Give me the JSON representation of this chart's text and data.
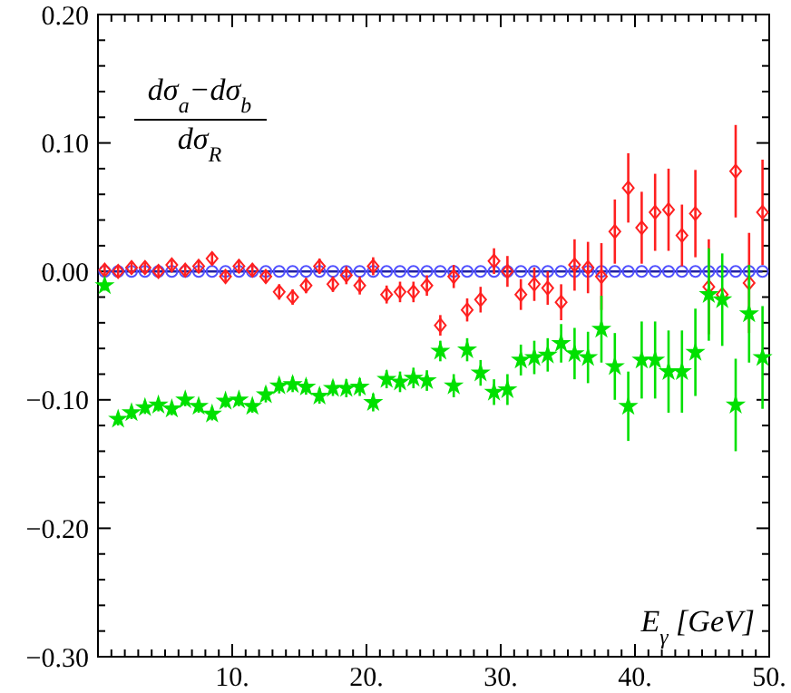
{
  "chart_data": {
    "type": "scatter",
    "annotations": [
      "dσ$_{a}$−dσ$_{b}$",
      "dσ$_{R}$"
    ],
    "xlabel": "E$_{γ}$ [GeV]",
    "x": [
      0.5,
      1.5,
      2.5,
      3.5,
      4.5,
      5.5,
      6.5,
      7.5,
      8.5,
      9.5,
      10.5,
      11.5,
      12.5,
      13.5,
      14.5,
      15.5,
      16.5,
      17.5,
      18.5,
      19.5,
      20.5,
      21.5,
      22.5,
      23.5,
      24.5,
      25.5,
      26.5,
      27.5,
      28.5,
      29.5,
      30.5,
      31.5,
      32.5,
      33.5,
      34.5,
      35.5,
      36.5,
      37.5,
      38.5,
      39.5,
      40.5,
      41.5,
      42.5,
      43.5,
      44.5,
      45.5,
      46.5,
      47.5,
      48.5,
      49.5
    ],
    "series": [
      {
        "type": "line",
        "color": "#5050ff",
        "marker": "circle",
        "line_style": "solid",
        "values": [
          0,
          0,
          0,
          0,
          0,
          0,
          0,
          0,
          0,
          0,
          0,
          0,
          0,
          0,
          0,
          0,
          0,
          0,
          0,
          0,
          0,
          0,
          0,
          0,
          0,
          0,
          0,
          0,
          0,
          0,
          0,
          0,
          0,
          0,
          0,
          0,
          0,
          0,
          0,
          0,
          0,
          0,
          0,
          0,
          0,
          0,
          0,
          0,
          0,
          0
        ]
      },
      {
        "color": "#ff2020",
        "marker": "diamond",
        "values": [
          0.001,
          0,
          0.003,
          0.003,
          0,
          0.005,
          0.001,
          0.004,
          0.01,
          -0.004,
          0.004,
          0.001,
          -0.004,
          -0.016,
          -0.02,
          -0.011,
          0.004,
          -0.01,
          -0.003,
          -0.011,
          0.004,
          -0.018,
          -0.016,
          -0.016,
          -0.011,
          -0.042,
          -0.004,
          -0.03,
          -0.022,
          0.008,
          0,
          -0.018,
          -0.01,
          -0.013,
          -0.024,
          0.005,
          0.003,
          -0.004,
          0.031,
          0.065,
          0.034,
          0.046,
          0.048,
          0.028,
          0.045,
          -0.012,
          -0.018,
          0.078,
          -0.009,
          0.046
        ],
        "errors": [
          0.004,
          0.004,
          0.004,
          0.004,
          0.004,
          0.004,
          0.004,
          0.004,
          0.005,
          0.005,
          0.005,
          0.005,
          0.005,
          0.006,
          0.006,
          0.006,
          0.006,
          0.006,
          0.007,
          0.007,
          0.007,
          0.007,
          0.008,
          0.008,
          0.008,
          0.008,
          0.009,
          0.009,
          0.01,
          0.01,
          0.012,
          0.012,
          0.013,
          0.013,
          0.014,
          0.02,
          0.02,
          0.026,
          0.025,
          0.027,
          0.028,
          0.03,
          0.032,
          0.024,
          0.034,
          0.037,
          null,
          0.036,
          0.039,
          0.041
        ]
      },
      {
        "color": "#00e000",
        "marker": "star",
        "values": [
          -0.011,
          -0.115,
          -0.11,
          -0.106,
          -0.104,
          -0.107,
          -0.1,
          -0.105,
          -0.111,
          -0.101,
          -0.1,
          -0.105,
          -0.096,
          -0.089,
          -0.088,
          -0.09,
          -0.097,
          -0.091,
          -0.091,
          -0.09,
          -0.102,
          -0.084,
          -0.086,
          -0.083,
          -0.085,
          -0.062,
          -0.089,
          -0.061,
          -0.079,
          -0.094,
          -0.092,
          -0.069,
          -0.067,
          -0.065,
          -0.056,
          -0.064,
          -0.067,
          -0.045,
          -0.074,
          -0.105,
          -0.069,
          -0.069,
          -0.078,
          -0.078,
          -0.063,
          -0.018,
          -0.022,
          -0.104,
          -0.033,
          -0.067
        ],
        "errors": [
          0.004,
          0.005,
          0.005,
          0.005,
          0.005,
          0.005,
          0.005,
          0.005,
          0.005,
          0.005,
          0.005,
          0.005,
          0.006,
          0.006,
          0.006,
          0.006,
          0.006,
          0.006,
          0.007,
          0.007,
          0.007,
          0.007,
          0.008,
          0.008,
          0.008,
          0.008,
          0.009,
          0.009,
          0.01,
          0.01,
          0.012,
          0.012,
          0.013,
          0.013,
          0.015,
          0.02,
          0.02,
          0.026,
          0.026,
          0.027,
          0.03,
          0.03,
          0.032,
          0.032,
          0.034,
          0.036,
          0.036,
          0.036,
          0.038,
          0.04
        ]
      }
    ],
    "xlim": [
      0,
      50
    ],
    "ylim": [
      -0.3,
      0.2
    ],
    "xticks": [
      {
        "value": 1,
        "label": null
      },
      {
        "value": 2,
        "label": null
      },
      {
        "value": 3,
        "label": null
      },
      {
        "value": 4,
        "label": null
      },
      {
        "value": 5,
        "label": null
      },
      {
        "value": 6,
        "label": null
      },
      {
        "value": 7,
        "label": null
      },
      {
        "value": 8,
        "label": null
      },
      {
        "value": 9,
        "label": null
      },
      {
        "value": 10,
        "label": "10."
      },
      {
        "value": 11,
        "label": null
      },
      {
        "value": 12,
        "label": null
      },
      {
        "value": 13,
        "label": null
      },
      {
        "value": 14,
        "label": null
      },
      {
        "value": 15,
        "label": null
      },
      {
        "value": 16,
        "label": null
      },
      {
        "value": 17,
        "label": null
      },
      {
        "value": 18,
        "label": null
      },
      {
        "value": 19,
        "label": null
      },
      {
        "value": 20,
        "label": "20."
      },
      {
        "value": 21,
        "label": null
      },
      {
        "value": 22,
        "label": null
      },
      {
        "value": 23,
        "label": null
      },
      {
        "value": 24,
        "label": null
      },
      {
        "value": 25,
        "label": null
      },
      {
        "value": 26,
        "label": null
      },
      {
        "value": 27,
        "label": null
      },
      {
        "value": 28,
        "label": null
      },
      {
        "value": 29,
        "label": null
      },
      {
        "value": 30,
        "label": "30."
      },
      {
        "value": 31,
        "label": null
      },
      {
        "value": 32,
        "label": null
      },
      {
        "value": 33,
        "label": null
      },
      {
        "value": 34,
        "label": null
      },
      {
        "value": 35,
        "label": null
      },
      {
        "value": 36,
        "label": null
      },
      {
        "value": 37,
        "label": null
      },
      {
        "value": 38,
        "label": null
      },
      {
        "value": 39,
        "label": null
      },
      {
        "value": 40,
        "label": "40."
      },
      {
        "value": 41,
        "label": null
      },
      {
        "value": 42,
        "label": null
      },
      {
        "value": 43,
        "label": null
      },
      {
        "value": 44,
        "label": null
      },
      {
        "value": 45,
        "label": null
      },
      {
        "value": 46,
        "label": null
      },
      {
        "value": 47,
        "label": null
      },
      {
        "value": 48,
        "label": null
      },
      {
        "value": 49,
        "label": null
      },
      {
        "value": 50,
        "label": "50."
      }
    ],
    "yticks": [
      {
        "value": -0.3,
        "label": "−0.30"
      },
      {
        "value": -0.28,
        "label": null
      },
      {
        "value": -0.26,
        "label": null
      },
      {
        "value": -0.24,
        "label": null
      },
      {
        "value": -0.22,
        "label": null
      },
      {
        "value": -0.2,
        "label": "−0.20"
      },
      {
        "value": -0.18,
        "label": null
      },
      {
        "value": -0.16,
        "label": null
      },
      {
        "value": -0.14,
        "label": null
      },
      {
        "value": -0.12,
        "label": null
      },
      {
        "value": -0.1,
        "label": "−0.10"
      },
      {
        "value": -0.08,
        "label": null
      },
      {
        "value": -0.06,
        "label": null
      },
      {
        "value": -0.04,
        "label": null
      },
      {
        "value": -0.02,
        "label": null
      },
      {
        "value": 0,
        "label": "0.00"
      },
      {
        "value": 0.02,
        "label": null
      },
      {
        "value": 0.04,
        "label": null
      },
      {
        "value": 0.06,
        "label": null
      },
      {
        "value": 0.08,
        "label": null
      },
      {
        "value": 0.1,
        "label": "0.10"
      },
      {
        "value": 0.12,
        "label": null
      },
      {
        "value": 0.14,
        "label": null
      },
      {
        "value": 0.16,
        "label": null
      },
      {
        "value": 0.18,
        "label": null
      },
      {
        "value": 0.2,
        "label": "0.20"
      }
    ],
    "grid": false
  }
}
